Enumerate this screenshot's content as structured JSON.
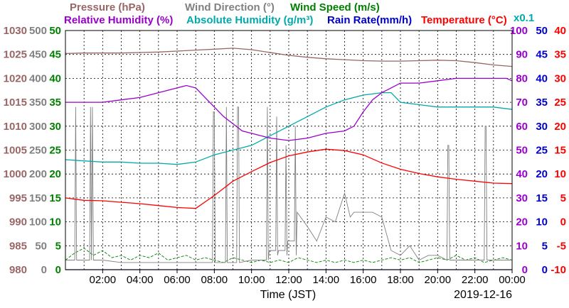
{
  "chart_data": {
    "type": "line",
    "legend_top": [
      {
        "key": "pressure",
        "label": "Pressure (hPa)",
        "color": "#996666"
      },
      {
        "key": "wind_dir",
        "label": "Wind Direction (°)",
        "color": "#808080"
      },
      {
        "key": "wind_speed",
        "label": "Wind Speed (m/s)",
        "color": "#008000"
      }
    ],
    "legend_bottom": [
      {
        "key": "rel_hum",
        "label": "Relative Humidity (%)",
        "color": "#9900cc"
      },
      {
        "key": "abs_hum",
        "label": "Absolute Humidity (g/m³)",
        "color": "#00aaaa"
      },
      {
        "key": "rain",
        "label": "Rain Rate(mm/h)",
        "color": "#0000cc"
      },
      {
        "key": "temp",
        "label": "Temperature (°C)",
        "color": "#ff0000"
      }
    ],
    "abs_hum_multiplier_label": "x0.1",
    "xlabel": "Time (JST)",
    "date_label": "2019-12-16",
    "x_ticks": [
      "02:00",
      "04:00",
      "06:00",
      "08:00",
      "10:00",
      "12:00",
      "14:00",
      "16:00",
      "18:00",
      "20:00",
      "22:00",
      "00:00"
    ],
    "x_range_hours": [
      0,
      24
    ],
    "axes": {
      "pressure": {
        "color": "#996666",
        "ticks": [
          "1030",
          "1025",
          "1020",
          "1015",
          "1010",
          "1005",
          "1000",
          "995",
          "990",
          "985",
          "980"
        ],
        "ylim": [
          980,
          1030
        ]
      },
      "wind_dir": {
        "color": "#808080",
        "ticks": [
          "500",
          "450",
          "400",
          "350",
          "300",
          "250",
          "200",
          "150",
          "100",
          "50",
          "0"
        ],
        "ylim": [
          0,
          500
        ]
      },
      "wind_speed": {
        "color": "#008000",
        "ticks": [
          "50",
          "45",
          "40",
          "35",
          "30",
          "25",
          "20",
          "15",
          "10",
          "5",
          "0"
        ],
        "ylim": [
          0,
          50
        ]
      },
      "rel_hum": {
        "color": "#9900cc",
        "ticks": [
          "100",
          "90",
          "80",
          "70",
          "60",
          "50",
          "40",
          "30",
          "20",
          "10",
          "0"
        ],
        "ylim": [
          0,
          100
        ]
      },
      "rain": {
        "color": "#0000cc",
        "ticks": [
          "50",
          "45",
          "40",
          "35",
          "30",
          "25",
          "20",
          "15",
          "10",
          "5",
          "0"
        ],
        "ylim": [
          0,
          50
        ]
      },
      "temp": {
        "color": "#ff0000",
        "ticks": [
          "40",
          "35",
          "30",
          "25",
          "20",
          "15",
          "10",
          "5",
          "0",
          "-5",
          "-10"
        ],
        "ylim": [
          -10,
          40
        ]
      }
    },
    "grid": true,
    "series": [
      {
        "name": "Pressure (hPa)",
        "key": "pressure",
        "axis": "pressure",
        "color": "#996666",
        "x": [
          0,
          1,
          2,
          3,
          4,
          5,
          6,
          7,
          8,
          9,
          10,
          11,
          12,
          13,
          14,
          15,
          16,
          17,
          18,
          19,
          20,
          21,
          22,
          23,
          24
        ],
        "y": [
          1025.2,
          1025.3,
          1025.3,
          1025.3,
          1025.4,
          1025.5,
          1025.7,
          1025.9,
          1026.1,
          1026.3,
          1026.0,
          1025.4,
          1024.8,
          1024.4,
          1024.1,
          1023.9,
          1023.7,
          1023.6,
          1023.6,
          1023.7,
          1023.8,
          1023.7,
          1023.3,
          1022.8,
          1022.5
        ]
      },
      {
        "name": "Relative Humidity (%)",
        "key": "rel_hum",
        "axis": "rel_hum",
        "color": "#9900cc",
        "x": [
          0,
          1,
          1.5,
          2,
          3,
          4,
          4.5,
          5,
          5.5,
          6,
          6.5,
          7,
          7.5,
          8,
          8.5,
          9,
          9.5,
          10,
          10.5,
          11,
          12,
          13,
          14,
          15,
          15.5,
          16,
          16.5,
          17,
          17.5,
          18,
          19,
          20,
          21,
          22,
          23,
          23.7,
          24
        ],
        "y": [
          70,
          70,
          70,
          70,
          71,
          72,
          73,
          74,
          75,
          76,
          77,
          76,
          72,
          68,
          64,
          61,
          58,
          57,
          56,
          55,
          54,
          55,
          57,
          58,
          60,
          66,
          71,
          74,
          76,
          78,
          78,
          79,
          80,
          80,
          80,
          80,
          79
        ]
      },
      {
        "name": "Absolute Humidity (g/m³)",
        "key": "abs_hum",
        "axis": "rel_hum",
        "color": "#00aaaa",
        "x": [
          0,
          1,
          2,
          3,
          4,
          5,
          6,
          7,
          8,
          9,
          10,
          11,
          12,
          13,
          14,
          15,
          16,
          17,
          17.5,
          18,
          19,
          20,
          21,
          22,
          23,
          24
        ],
        "y": [
          46,
          45.5,
          45,
          45,
          44.5,
          44.5,
          44,
          45,
          48,
          50,
          52,
          56,
          60,
          64,
          68,
          71,
          73,
          74,
          74,
          70,
          69,
          68,
          68,
          68,
          68,
          67
        ]
      },
      {
        "name": "Temperature (°C)",
        "key": "temp",
        "axis": "temp",
        "color": "#ff0000",
        "x": [
          0,
          1,
          2,
          3,
          4,
          5,
          6,
          7,
          8,
          9,
          10,
          11,
          12,
          13,
          14,
          15,
          16,
          17,
          18,
          19,
          20,
          21,
          22,
          23,
          24
        ],
        "y": [
          5,
          4.5,
          4.4,
          4.1,
          3.8,
          3.4,
          3.0,
          2.8,
          5.5,
          8.5,
          10.5,
          12.4,
          13.8,
          14.6,
          15.2,
          14.9,
          14.0,
          12.3,
          11.0,
          10.1,
          9.4,
          8.9,
          8.5,
          8.1,
          8.0
        ]
      },
      {
        "name": "Wind Direction (°)",
        "key": "wind_dir",
        "axis": "wind_dir",
        "color": "#808080",
        "x": [
          0,
          0.5,
          0.55,
          0.6,
          1.3,
          1.35,
          1.4,
          1.45,
          1.5,
          2,
          3,
          4,
          5,
          6,
          7,
          7.9,
          7.95,
          8.0,
          8.05,
          8.6,
          8.65,
          8.7,
          8.75,
          9.2,
          9.25,
          9.3,
          9.35,
          10,
          10.8,
          10.85,
          10.9,
          10.95,
          11.3,
          11.35,
          11.4,
          11.45,
          11.8,
          11.85,
          11.9,
          11.95,
          12.3,
          12.35,
          12.4,
          12.45,
          13,
          13.5,
          14,
          14.5,
          15,
          15.3,
          15.5,
          16,
          16.5,
          17,
          17.5,
          18,
          18.5,
          19,
          19.5,
          20,
          20.5,
          20.55,
          20.6,
          20.65,
          21,
          22,
          22.5,
          22.55,
          22.6,
          22.65,
          23,
          24
        ],
        "y": [
          20,
          20,
          340,
          20,
          20,
          340,
          20,
          340,
          20,
          20,
          15,
          15,
          15,
          15,
          15,
          15,
          330,
          330,
          15,
          15,
          340,
          15,
          15,
          15,
          340,
          340,
          15,
          20,
          20,
          340,
          20,
          40,
          40,
          320,
          30,
          40,
          40,
          260,
          30,
          60,
          60,
          300,
          30,
          120,
          90,
          60,
          110,
          100,
          160,
          110,
          120,
          120,
          120,
          110,
          40,
          30,
          50,
          20,
          30,
          30,
          20,
          260,
          260,
          20,
          20,
          20,
          20,
          300,
          300,
          20,
          20,
          20
        ]
      },
      {
        "name": "Wind Speed (m/s)",
        "key": "wind_speed",
        "axis": "wind_speed",
        "color": "#008000",
        "x": [
          0,
          0.5,
          1,
          1.5,
          2,
          2.5,
          3,
          3.5,
          4,
          4.5,
          5,
          5.5,
          6,
          6.5,
          7,
          7.5,
          8,
          8.5,
          9,
          9.5,
          10,
          10.5,
          11,
          11.5,
          12,
          12.5,
          13,
          13.5,
          14,
          14.5,
          15,
          15.5,
          16,
          16.5,
          17,
          17.5,
          18,
          18.5,
          19,
          19.5,
          20,
          20.5,
          21,
          21.5,
          22,
          22.5,
          23,
          23.5,
          24
        ],
        "y": [
          2,
          3.5,
          4.5,
          3,
          4,
          2.5,
          3,
          2,
          3,
          2.5,
          3.5,
          2,
          2.5,
          3,
          2,
          2.5,
          2,
          1.5,
          2.5,
          2,
          1.5,
          2,
          1.5,
          2,
          1.5,
          2.5,
          2,
          1.5,
          2,
          1.5,
          2,
          1.5,
          2,
          1.5,
          2,
          2.5,
          2,
          2.5,
          1.5,
          2,
          2.5,
          2,
          3,
          2,
          2.5,
          1.5,
          2,
          2.5,
          2
        ]
      },
      {
        "name": "Rain Rate(mm/h)",
        "key": "rain",
        "axis": "rain",
        "color": "#0000cc",
        "x": [
          0,
          24
        ],
        "y": [
          0,
          0
        ]
      }
    ]
  }
}
